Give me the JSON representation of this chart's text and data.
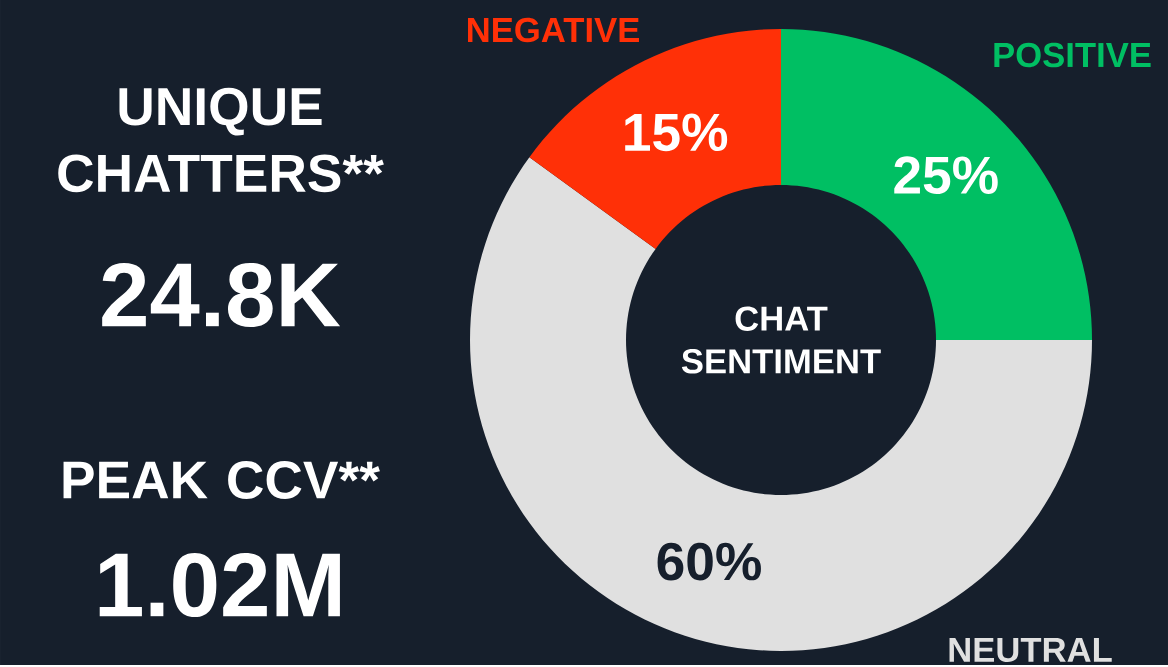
{
  "chart_data": {
    "type": "donut",
    "title": "CHAT SENTIMENT",
    "categories": [
      "POSITIVE",
      "NEUTRAL",
      "NEGATIVE"
    ],
    "values": [
      25,
      60,
      15
    ],
    "colors": [
      "#00bf63",
      "#e0e0e0",
      "#ff3007"
    ],
    "value_labels": [
      "25%",
      "60%",
      "15%"
    ],
    "annotations": [
      "UNIQUE CHATTERS**",
      "24.8K",
      "PEAK CCV**",
      "1.02M"
    ]
  }
}
